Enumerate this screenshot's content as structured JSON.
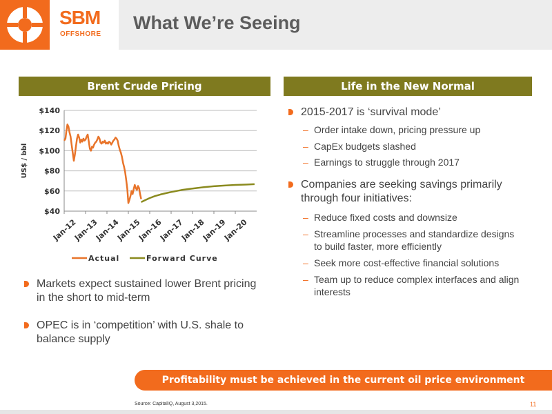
{
  "header": {
    "brand_name": "SBM",
    "brand_sub": "OFFSHORE",
    "title": "What We’re Seeing"
  },
  "left": {
    "section_title": "Brent Crude Pricing",
    "bullets": [
      "Markets expect sustained lower Brent pricing in the short to mid-term",
      "OPEC is in ‘competition’ with U.S. shale to balance supply"
    ]
  },
  "right": {
    "section_title": "Life in the New Normal",
    "groups": [
      {
        "text": "2015-2017 is ‘survival mode’",
        "subs": [
          "Order intake down, pricing pressure up",
          "CapEx budgets slashed",
          "Earnings to struggle through 2017"
        ]
      },
      {
        "text": "Companies are seeking savings primarily through four initiatives:",
        "subs": [
          "Reduce fixed costs and downsize",
          "Streamline processes and standardize designs to build faster, more efficiently",
          "Seek more cost-effective financial solutions",
          "Team up to reduce complex interfaces and align interests"
        ]
      }
    ]
  },
  "banner": "Profitability must be achieved in the current oil price environment",
  "source": "Source:  CapitalIQ, August 3,2015.",
  "page_number": "11",
  "colors": {
    "accent": "#f26b1d",
    "section_bar": "#7f7a1f",
    "actual_line": "#e8742a",
    "forward_line": "#8a8a1e"
  },
  "chart_data": {
    "type": "line",
    "title": "",
    "xlabel": "",
    "ylabel": "US$ / bbl",
    "ylim": [
      40,
      140
    ],
    "yticks": [
      "$40",
      "$60",
      "$80",
      "$100",
      "$120",
      "$140"
    ],
    "xlim": [
      2012.0,
      2021.0
    ],
    "xticks": [
      "Jan-12",
      "Jan-13",
      "Jan-14",
      "Jan-15",
      "Jan-16",
      "Jan-17",
      "Jan-18",
      "Jan-19",
      "Jan-20"
    ],
    "grid": true,
    "legend": "bottom",
    "series": [
      {
        "name": "Actual",
        "x": [
          2012.0,
          2012.06,
          2012.1,
          2012.15,
          2012.2,
          2012.25,
          2012.3,
          2012.35,
          2012.4,
          2012.45,
          2012.5,
          2012.55,
          2012.6,
          2012.65,
          2012.7,
          2012.75,
          2012.8,
          2012.85,
          2012.9,
          2012.95,
          2013.0,
          2013.05,
          2013.1,
          2013.15,
          2013.2,
          2013.25,
          2013.3,
          2013.35,
          2013.4,
          2013.45,
          2013.5,
          2013.55,
          2013.6,
          2013.65,
          2013.7,
          2013.75,
          2013.8,
          2013.85,
          2013.9,
          2013.95,
          2014.0,
          2014.05,
          2014.1,
          2014.15,
          2014.2,
          2014.25,
          2014.3,
          2014.35,
          2014.4,
          2014.45,
          2014.5,
          2014.55,
          2014.6,
          2014.65,
          2014.7,
          2014.75,
          2014.8,
          2014.85,
          2014.9,
          2014.95,
          2015.0,
          2015.05,
          2015.1,
          2015.15,
          2015.2,
          2015.25,
          2015.3,
          2015.35,
          2015.4,
          2015.45,
          2015.5,
          2015.55,
          2015.6
        ],
        "y": [
          110,
          112,
          119,
          126,
          124,
          118,
          114,
          106,
          98,
          90,
          96,
          104,
          112,
          116,
          113,
          108,
          111,
          109,
          112,
          110,
          111,
          114,
          116,
          109,
          102,
          100,
          104,
          103,
          106,
          108,
          109,
          111,
          114,
          112,
          108,
          107,
          109,
          108,
          110,
          107,
          108,
          107,
          109,
          108,
          106,
          108,
          110,
          111,
          113,
          112,
          110,
          105,
          101,
          98,
          94,
          88,
          84,
          79,
          71,
          62,
          48,
          51,
          55,
          60,
          57,
          62,
          66,
          63,
          61,
          65,
          63,
          57,
          52
        ]
      },
      {
        "name": "Forward Curve",
        "x": [
          2015.6,
          2015.8,
          2016.0,
          2016.25,
          2016.5,
          2016.75,
          2017.0,
          2017.5,
          2018.0,
          2018.5,
          2019.0,
          2019.5,
          2020.0,
          2020.5,
          2020.9
        ],
        "y": [
          49,
          51,
          53,
          55,
          56.5,
          57.8,
          59,
          61,
          62.5,
          63.7,
          64.7,
          65.4,
          66,
          66.4,
          66.8
        ]
      }
    ]
  }
}
